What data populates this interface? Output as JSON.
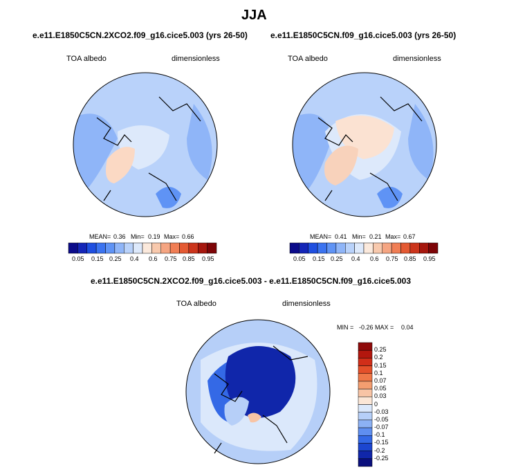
{
  "page": {
    "title": "JJA"
  },
  "chart_data": [
    {
      "type": "heatmap",
      "title": "e.e11.E1850C5CN.2XCO2.f09_g16.cice5.003 (yrs 26-50)",
      "variable": "TOA albedo",
      "units": "dimensionless",
      "projection": "north polar stereographic",
      "stats": {
        "mean_label": "MEAN=",
        "mean": "0.36",
        "min_label": "Min=",
        "min": "0.19",
        "max_label": "Max=",
        "max": "0.66"
      },
      "colorbar": {
        "orientation": "horizontal",
        "levels": [
          "0.05",
          "0.1",
          "0.15",
          "0.2",
          "0.25",
          "0.3",
          "0.4",
          "0.5",
          "0.6",
          "0.65",
          "0.7",
          "0.75",
          "0.8",
          "0.85",
          "0.9",
          "0.95"
        ],
        "tick_labels": [
          "0.05",
          "0.15",
          "0.25",
          "0.4",
          "0.6",
          "0.75",
          "0.85",
          "0.95"
        ],
        "colors": [
          "#0b0b8a",
          "#1426b8",
          "#1f4fe0",
          "#3b73f0",
          "#5f93f5",
          "#8fb5f8",
          "#b9d2fa",
          "#dde9fb",
          "#fbe9dc",
          "#f8c9ad",
          "#f5a582",
          "#f07e55",
          "#e45a33",
          "#cc351c",
          "#a6170e",
          "#7d0407"
        ]
      }
    },
    {
      "type": "heatmap",
      "title": "e.e11.E1850C5CN.f09_g16.cice5.003 (yrs 26-50)",
      "variable": "TOA albedo",
      "units": "dimensionless",
      "projection": "north polar stereographic",
      "stats": {
        "mean_label": "MEAN=",
        "mean": "0.41",
        "min_label": "Min=",
        "min": "0.21",
        "max_label": "Max=",
        "max": "0.67"
      },
      "colorbar": {
        "orientation": "horizontal",
        "levels": [
          "0.05",
          "0.1",
          "0.15",
          "0.2",
          "0.25",
          "0.3",
          "0.4",
          "0.5",
          "0.6",
          "0.65",
          "0.7",
          "0.75",
          "0.8",
          "0.85",
          "0.9",
          "0.95"
        ],
        "tick_labels": [
          "0.05",
          "0.15",
          "0.25",
          "0.4",
          "0.6",
          "0.75",
          "0.85",
          "0.95"
        ],
        "colors": [
          "#0b0b8a",
          "#1426b8",
          "#1f4fe0",
          "#3b73f0",
          "#5f93f5",
          "#8fb5f8",
          "#b9d2fa",
          "#dde9fb",
          "#fbe9dc",
          "#f8c9ad",
          "#f5a582",
          "#f07e55",
          "#e45a33",
          "#cc351c",
          "#a6170e",
          "#7d0407"
        ]
      }
    },
    {
      "type": "heatmap",
      "title": "e.e11.E1850C5CN.2XCO2.f09_g16.cice5.003 - e.e11.E1850C5CN.f09_g16.cice5.003",
      "variable": "TOA albedo",
      "units": "dimensionless",
      "projection": "north polar stereographic",
      "stats": {
        "min_label": "MIN =",
        "min": "-0.26",
        "max_label": "MAX =",
        "max": "0.04"
      },
      "colorbar": {
        "orientation": "vertical",
        "tick_labels": [
          "0.25",
          "0.2",
          "0.15",
          "0.1",
          "0.07",
          "0.05",
          "0.03",
          "0",
          "-0.03",
          "-0.05",
          "-0.07",
          "-0.1",
          "-0.15",
          "-0.2",
          "-0.25"
        ],
        "colors": [
          "#8f0a0a",
          "#b3170e",
          "#d12e19",
          "#e4502a",
          "#ef7848",
          "#f49e70",
          "#f8c4a5",
          "#fbe6d6",
          "#dbe8fb",
          "#b6cff8",
          "#8cb1f4",
          "#5f8ff0",
          "#3469e6",
          "#1c46d0",
          "#1026aa",
          "#0a0f7d"
        ]
      }
    }
  ]
}
